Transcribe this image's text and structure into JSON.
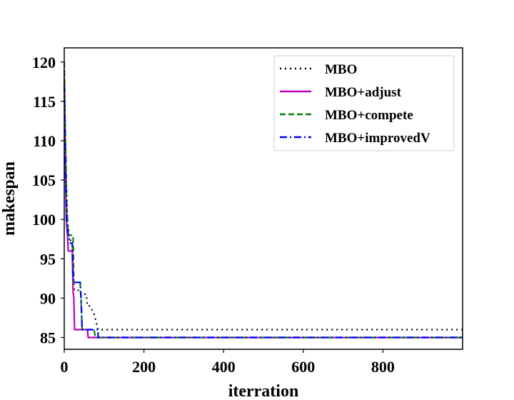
{
  "chart_data": {
    "type": "line",
    "xlabel": "iterration",
    "ylabel": "makespan",
    "xlim": [
      0,
      1000
    ],
    "ylim": [
      83.5,
      121.8
    ],
    "xticks": [
      0,
      200,
      400,
      600,
      800
    ],
    "yticks": [
      85,
      90,
      95,
      100,
      105,
      110,
      115,
      120
    ],
    "grid": false,
    "legend_position": "top-right",
    "series": [
      {
        "name": "MBO",
        "color": "#000000",
        "dash": "dotted",
        "points": [
          [
            0,
            119
          ],
          [
            3,
            110
          ],
          [
            5,
            105
          ],
          [
            8,
            100
          ],
          [
            12,
            98
          ],
          [
            18,
            97
          ],
          [
            20,
            97
          ],
          [
            22,
            93
          ],
          [
            25,
            91
          ],
          [
            40,
            91
          ],
          [
            42,
            90.5
          ],
          [
            55,
            90.5
          ],
          [
            58,
            89
          ],
          [
            65,
            89
          ],
          [
            70,
            88.5
          ],
          [
            75,
            88
          ],
          [
            80,
            87
          ],
          [
            85,
            86
          ],
          [
            1000,
            86
          ]
        ]
      },
      {
        "name": "MBO+adjust",
        "color": "#c000c0",
        "dash": "solid",
        "points": [
          [
            0,
            118
          ],
          [
            2,
            112
          ],
          [
            3,
            106
          ],
          [
            5,
            100
          ],
          [
            8,
            98
          ],
          [
            10,
            96
          ],
          [
            20,
            96
          ],
          [
            22,
            91
          ],
          [
            24,
            90
          ],
          [
            26,
            86
          ],
          [
            58,
            86
          ],
          [
            60,
            85
          ],
          [
            1000,
            85
          ]
        ]
      },
      {
        "name": "MBO+compete",
        "color": "#008000",
        "dash": "dashed",
        "points": [
          [
            0,
            120
          ],
          [
            2,
            112
          ],
          [
            4,
            108
          ],
          [
            6,
            102
          ],
          [
            10,
            98
          ],
          [
            22,
            98
          ],
          [
            24,
            92
          ],
          [
            40,
            92
          ],
          [
            42,
            90
          ],
          [
            45,
            86
          ],
          [
            75,
            86
          ],
          [
            78,
            85
          ],
          [
            1000,
            85
          ]
        ]
      },
      {
        "name": "MBO+improvedV",
        "color": "#0000ff",
        "dash": "dashdot",
        "points": [
          [
            0,
            117
          ],
          [
            2,
            110
          ],
          [
            4,
            105
          ],
          [
            6,
            100
          ],
          [
            10,
            98
          ],
          [
            15,
            97
          ],
          [
            20,
            97
          ],
          [
            22,
            93
          ],
          [
            24,
            92
          ],
          [
            40,
            92
          ],
          [
            42,
            90
          ],
          [
            45,
            86
          ],
          [
            85,
            86
          ],
          [
            85,
            85
          ],
          [
            1000,
            85
          ]
        ]
      }
    ]
  }
}
